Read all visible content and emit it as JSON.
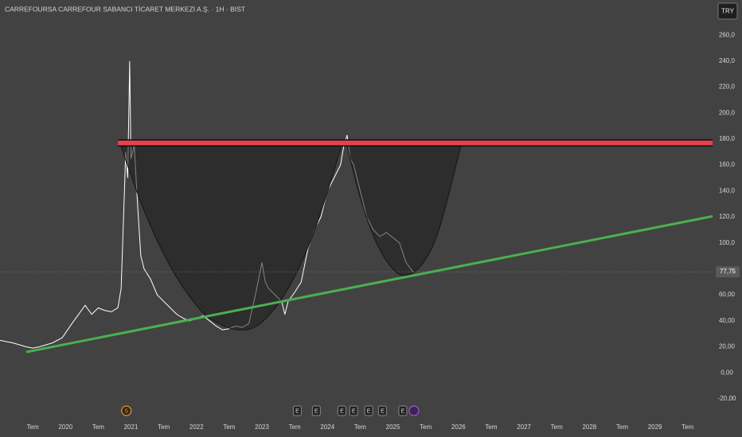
{
  "chart_data": {
    "type": "line",
    "title": "CARREFOURSA CARREFOUR SABANCI TİCARET MERKEZİ A.Ş. · 1H · BIST",
    "currency": "TRY",
    "xlim": [
      2019.0,
      2029.88
    ],
    "ylim": [
      -28,
      287
    ],
    "xticks": [
      {
        "value": 2019.5,
        "label": "Tem"
      },
      {
        "value": 2020,
        "label": "2020"
      },
      {
        "value": 2020.5,
        "label": "Tem"
      },
      {
        "value": 2021,
        "label": "2021"
      },
      {
        "value": 2021.5,
        "label": "Tem"
      },
      {
        "value": 2022,
        "label": "2022"
      },
      {
        "value": 2022.5,
        "label": "Tem"
      },
      {
        "value": 2023,
        "label": "2023"
      },
      {
        "value": 2023.5,
        "label": "Tem"
      },
      {
        "value": 2024,
        "label": "2024"
      },
      {
        "value": 2024.5,
        "label": "Tem"
      },
      {
        "value": 2025,
        "label": "2025"
      },
      {
        "value": 2025.5,
        "label": "Tem"
      },
      {
        "value": 2026,
        "label": "2026"
      },
      {
        "value": 2026.5,
        "label": "Tem"
      },
      {
        "value": 2027,
        "label": "2027"
      },
      {
        "value": 2027.5,
        "label": "Tem"
      },
      {
        "value": 2028,
        "label": "2028"
      },
      {
        "value": 2028.5,
        "label": "Tem"
      },
      {
        "value": 2029,
        "label": "2029"
      },
      {
        "value": 2029.5,
        "label": "Tem"
      }
    ],
    "yticks": [
      {
        "value": 260,
        "label": "260,0"
      },
      {
        "value": 240,
        "label": "240,0"
      },
      {
        "value": 220,
        "label": "220,0"
      },
      {
        "value": 200,
        "label": "200,0"
      },
      {
        "value": 180,
        "label": "180,0"
      },
      {
        "value": 160,
        "label": "160,0"
      },
      {
        "value": 140,
        "label": "140,0"
      },
      {
        "value": 120,
        "label": "120,0"
      },
      {
        "value": 100,
        "label": "100,0"
      },
      {
        "value": 60,
        "label": "60,00"
      },
      {
        "value": 40,
        "label": "40,00"
      },
      {
        "value": 20,
        "label": "20,00"
      },
      {
        "value": 0,
        "label": "0,00"
      },
      {
        "value": -20,
        "label": "-20,00"
      }
    ],
    "last_price": {
      "value": 77.75,
      "label": "77,75"
    },
    "series": [
      {
        "color": "#ffffff",
        "x": [
          2019.0,
          2019.2,
          2019.4,
          2019.5,
          2019.6,
          2019.8,
          2019.95,
          2020.1,
          2020.2,
          2020.3,
          2020.4,
          2020.5,
          2020.6,
          2020.7,
          2020.8,
          2020.85,
          2020.88,
          2020.92,
          2020.95,
          2020.98,
          2021.0,
          2021.05,
          2021.1,
          2021.15,
          2021.2,
          2021.3,
          2021.4,
          2021.5,
          2021.6,
          2021.7,
          2021.8,
          2021.9,
          2022.0,
          2022.1,
          2022.2,
          2022.3,
          2022.4,
          2022.5,
          2022.6,
          2022.7,
          2022.8,
          2022.9,
          2023.0,
          2023.05,
          2023.1,
          2023.2,
          2023.3,
          2023.35,
          2023.4,
          2023.5,
          2023.6,
          2023.7,
          2023.8,
          2023.9,
          2024.0,
          2024.1,
          2024.2,
          2024.25,
          2024.3,
          2024.35,
          2024.4,
          2024.5,
          2024.6,
          2024.7,
          2024.8,
          2024.9,
          2025.0,
          2025.1,
          2025.2,
          2025.3,
          2025.33
        ],
        "values": [
          25,
          23,
          20,
          19,
          20,
          23,
          27,
          38,
          45,
          52,
          45,
          50,
          48,
          47,
          50,
          65,
          110,
          170,
          150,
          240,
          165,
          175,
          130,
          90,
          80,
          72,
          60,
          55,
          50,
          45,
          42,
          40,
          42,
          44,
          40,
          36,
          33,
          34,
          36,
          35,
          38,
          60,
          85,
          70,
          65,
          60,
          55,
          45,
          55,
          62,
          70,
          95,
          110,
          120,
          140,
          150,
          160,
          175,
          183,
          165,
          160,
          140,
          120,
          110,
          105,
          108,
          104,
          100,
          85,
          78,
          77.75
        ]
      },
      {
        "color": "#1a1a1a",
        "fill": "rgba(30,30,30,0.55)",
        "x": [
          2020.83,
          2021.2,
          2021.6,
          2022.0,
          2022.3,
          2022.67,
          2023.0,
          2023.4,
          2023.8,
          2024.23
        ],
        "values": [
          177,
          125,
          82,
          52,
          39,
          33,
          39,
          65,
          109,
          177
        ]
      },
      {
        "color": "#1a1a1a",
        "fill": "rgba(30,30,30,0.55)",
        "x": [
          2024.29,
          2024.5,
          2024.75,
          2025.0,
          2025.2,
          2025.45,
          2025.7,
          2026.05
        ],
        "values": [
          177,
          135,
          100,
          80,
          75,
          84,
          110,
          177
        ]
      },
      {
        "color": "#e5424d",
        "width": 6,
        "x": [
          2020.8,
          2029.88
        ],
        "values": [
          177,
          177
        ]
      },
      {
        "color": "#4caf50",
        "width": 3,
        "x": [
          2019.4,
          2029.88
        ],
        "values": [
          16,
          120.5
        ]
      }
    ],
    "events": [
      {
        "x": 2020.93,
        "label": "S"
      },
      {
        "x": 2023.54,
        "label": "E"
      },
      {
        "x": 2023.83,
        "label": "E"
      },
      {
        "x": 2024.22,
        "label": "E"
      },
      {
        "x": 2024.4,
        "label": "E"
      },
      {
        "x": 2024.63,
        "label": "E"
      },
      {
        "x": 2024.84,
        "label": "E"
      },
      {
        "x": 2025.15,
        "label": "E"
      }
    ]
  }
}
